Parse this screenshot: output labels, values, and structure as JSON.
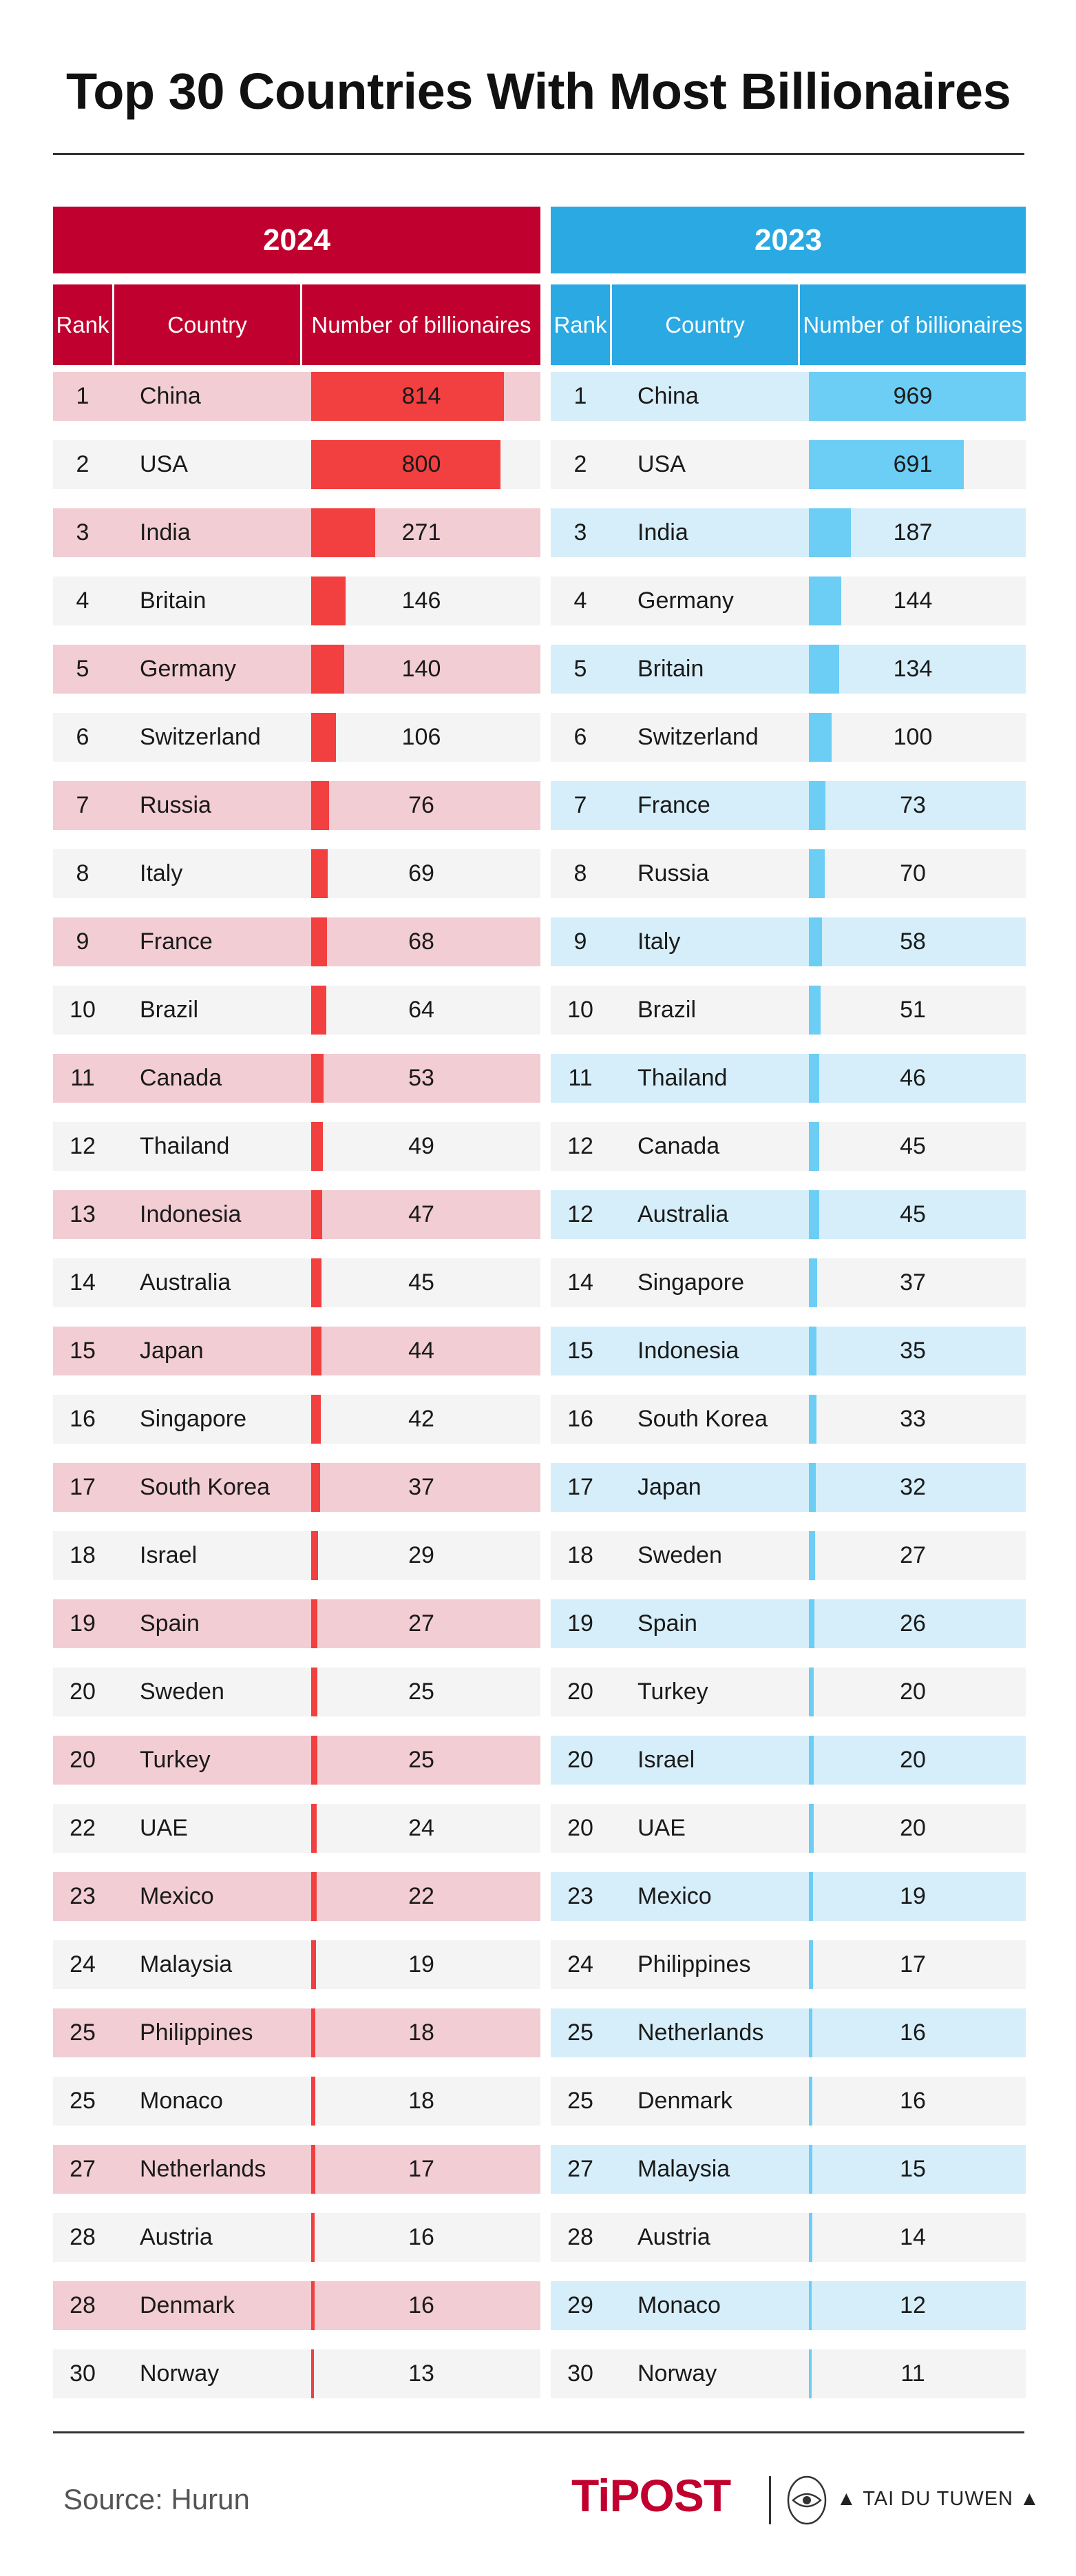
{
  "title": "Top 30 Countries With Most Billionaires",
  "headers": {
    "rank": "Rank",
    "country": "Country",
    "number": "Number of billionaires"
  },
  "source": "Source: Hurun",
  "brand": {
    "logo": "TiPOST",
    "partner": "▲ TAI DU TUWEN ▲"
  },
  "colors": {
    "red_header": "#c0002e",
    "red_bar": "#f23f3f",
    "red_row": "#f2cdd4",
    "blue_header": "#2aa9e3",
    "blue_bar": "#6ccdf5",
    "blue_row": "#d6eef9",
    "grey_row": "#f4f4f4"
  },
  "chart_data": [
    {
      "type": "table",
      "title": "2024",
      "max_value": 969,
      "rows": [
        {
          "rank": "1",
          "country": "China",
          "value": 814
        },
        {
          "rank": "2",
          "country": "USA",
          "value": 800
        },
        {
          "rank": "3",
          "country": "India",
          "value": 271
        },
        {
          "rank": "4",
          "country": "Britain",
          "value": 146
        },
        {
          "rank": "5",
          "country": "Germany",
          "value": 140
        },
        {
          "rank": "6",
          "country": "Switzerland",
          "value": 106
        },
        {
          "rank": "7",
          "country": "Russia",
          "value": 76
        },
        {
          "rank": "8",
          "country": "Italy",
          "value": 69
        },
        {
          "rank": "9",
          "country": "France",
          "value": 68
        },
        {
          "rank": "10",
          "country": "Brazil",
          "value": 64
        },
        {
          "rank": "11",
          "country": "Canada",
          "value": 53
        },
        {
          "rank": "12",
          "country": "Thailand",
          "value": 49
        },
        {
          "rank": "13",
          "country": "Indonesia",
          "value": 47
        },
        {
          "rank": "14",
          "country": "Australia",
          "value": 45
        },
        {
          "rank": "15",
          "country": "Japan",
          "value": 44
        },
        {
          "rank": "16",
          "country": "Singapore",
          "value": 42
        },
        {
          "rank": "17",
          "country": "South Korea",
          "value": 37
        },
        {
          "rank": "18",
          "country": "Israel",
          "value": 29
        },
        {
          "rank": "19",
          "country": "Spain",
          "value": 27
        },
        {
          "rank": "20",
          "country": "Sweden",
          "value": 25
        },
        {
          "rank": "20",
          "country": "Turkey",
          "value": 25
        },
        {
          "rank": "22",
          "country": "UAE",
          "value": 24
        },
        {
          "rank": "23",
          "country": "Mexico",
          "value": 22
        },
        {
          "rank": "24",
          "country": "Malaysia",
          "value": 19
        },
        {
          "rank": "25",
          "country": "Philippines",
          "value": 18
        },
        {
          "rank": "25",
          "country": "Monaco",
          "value": 18
        },
        {
          "rank": "27",
          "country": "Netherlands",
          "value": 17
        },
        {
          "rank": "28",
          "country": "Austria",
          "value": 16
        },
        {
          "rank": "28",
          "country": "Denmark",
          "value": 16
        },
        {
          "rank": "30",
          "country": "Norway",
          "value": 13
        }
      ]
    },
    {
      "type": "table",
      "title": "2023",
      "max_value": 969,
      "rows": [
        {
          "rank": "1",
          "country": "China",
          "value": 969
        },
        {
          "rank": "2",
          "country": "USA",
          "value": 691
        },
        {
          "rank": "3",
          "country": "India",
          "value": 187
        },
        {
          "rank": "4",
          "country": "Germany",
          "value": 144
        },
        {
          "rank": "5",
          "country": "Britain",
          "value": 134
        },
        {
          "rank": "6",
          "country": "Switzerland",
          "value": 100
        },
        {
          "rank": "7",
          "country": "France",
          "value": 73
        },
        {
          "rank": "8",
          "country": "Russia",
          "value": 70
        },
        {
          "rank": "9",
          "country": "Italy",
          "value": 58
        },
        {
          "rank": "10",
          "country": "Brazil",
          "value": 51
        },
        {
          "rank": "11",
          "country": "Thailand",
          "value": 46
        },
        {
          "rank": "12",
          "country": "Canada",
          "value": 45
        },
        {
          "rank": "12",
          "country": "Australia",
          "value": 45
        },
        {
          "rank": "14",
          "country": "Singapore",
          "value": 37
        },
        {
          "rank": "15",
          "country": "Indonesia",
          "value": 35
        },
        {
          "rank": "16",
          "country": "South Korea",
          "value": 33
        },
        {
          "rank": "17",
          "country": "Japan",
          "value": 32
        },
        {
          "rank": "18",
          "country": "Sweden",
          "value": 27
        },
        {
          "rank": "19",
          "country": "Spain",
          "value": 26
        },
        {
          "rank": "20",
          "country": "Turkey",
          "value": 20
        },
        {
          "rank": "20",
          "country": "Israel",
          "value": 20
        },
        {
          "rank": "20",
          "country": "UAE",
          "value": 20
        },
        {
          "rank": "23",
          "country": "Mexico",
          "value": 19
        },
        {
          "rank": "24",
          "country": "Philippines",
          "value": 17
        },
        {
          "rank": "25",
          "country": "Netherlands",
          "value": 16
        },
        {
          "rank": "25",
          "country": "Denmark",
          "value": 16
        },
        {
          "rank": "27",
          "country": "Malaysia",
          "value": 15
        },
        {
          "rank": "28",
          "country": "Austria",
          "value": 14
        },
        {
          "rank": "29",
          "country": "Monaco",
          "value": 12
        },
        {
          "rank": "30",
          "country": "Norway",
          "value": 11
        }
      ]
    }
  ]
}
